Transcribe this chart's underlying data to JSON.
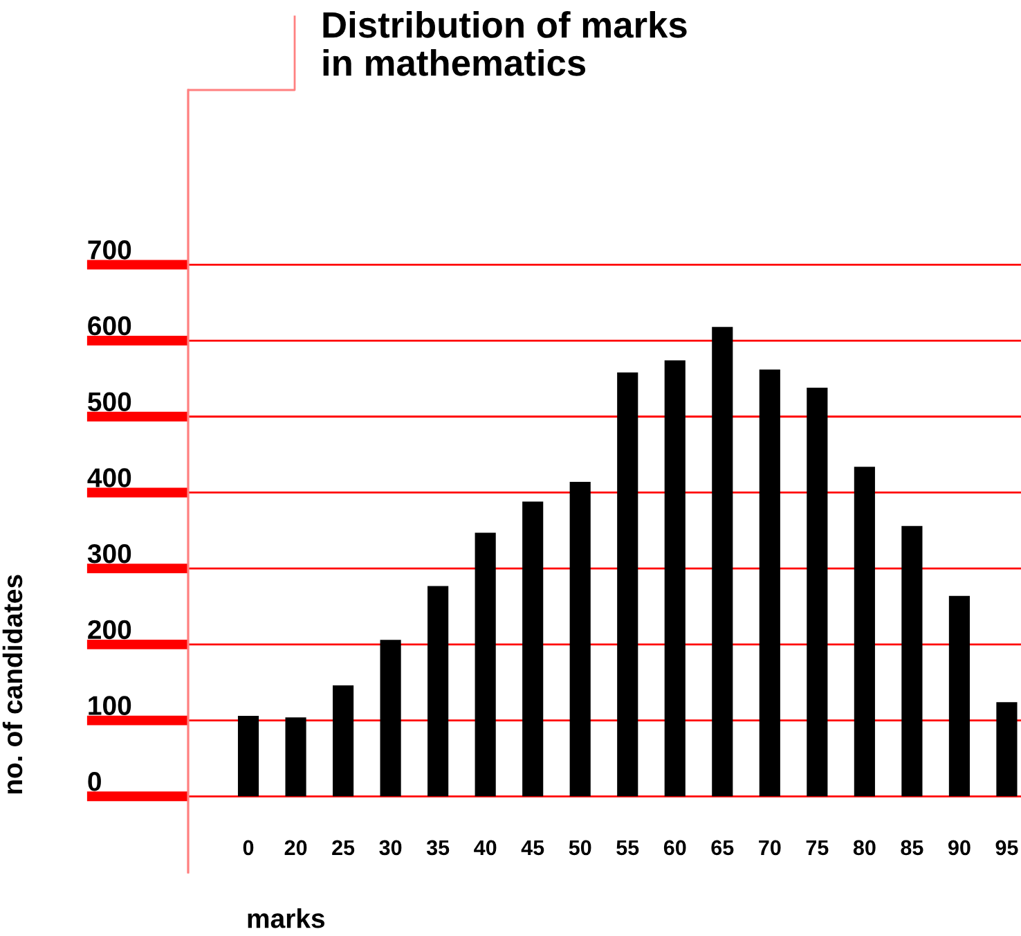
{
  "chart_data": {
    "type": "bar",
    "title": "Distribution of marks\nin mathematics",
    "xlabel": "marks",
    "ylabel": "no. of candidates",
    "categories": [
      "0",
      "20",
      "25",
      "30",
      "35",
      "40",
      "45",
      "50",
      "55",
      "60",
      "65",
      "70",
      "75",
      "80",
      "85",
      "90",
      "95"
    ],
    "values": [
      106,
      104,
      146,
      206,
      277,
      347,
      388,
      414,
      558,
      574,
      618,
      562,
      538,
      434,
      356,
      264,
      124
    ],
    "color": "#000000",
    "ylim": [
      -100,
      930
    ],
    "yticks": [
      0,
      100,
      200,
      300,
      400,
      500,
      600,
      700
    ],
    "grid": "y"
  }
}
